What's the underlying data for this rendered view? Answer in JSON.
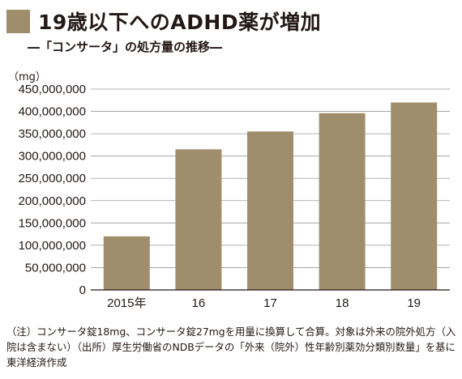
{
  "header": {
    "title": "19歳以下へのADHD薬が増加",
    "subtitle": "―「コンサータ」の処方量の推移―"
  },
  "note": {
    "text": "（注）コンサータ錠18mg、コンサータ錠27mgを用量に換算して合算。対象は外来の院外処方（入院は含まない）（出所）厚生労働省のNDBデータの「外来（院外）性年齢別薬効分類別数量」を基に東洋経済作成"
  },
  "chart_data": {
    "type": "bar",
    "title": "19歳以下へのADHD薬が増加",
    "subtitle": "―「コンサータ」の処方量の推移―",
    "ylabel": "（mg）",
    "xlabel": "",
    "categories": [
      "2015年",
      "16",
      "17",
      "18",
      "19"
    ],
    "values": [
      120000000,
      315000000,
      355000000,
      396000000,
      420000000
    ],
    "ylim": [
      0,
      450000000
    ],
    "yticks": [
      0,
      50000000,
      100000000,
      150000000,
      200000000,
      250000000,
      300000000,
      350000000,
      400000000,
      450000000
    ],
    "ytick_labels": [
      "0",
      "50,000,000",
      "100,000,000",
      "150,000,000",
      "200,000,000",
      "250,000,000",
      "300,000,000",
      "350,000,000",
      "400,000,000",
      "450,000,000"
    ],
    "grid": true,
    "legend": "none",
    "colors": {
      "bar": "#a08d6b",
      "grid": "#9a9a9a",
      "axis": "#231815",
      "text": "#231815"
    }
  }
}
